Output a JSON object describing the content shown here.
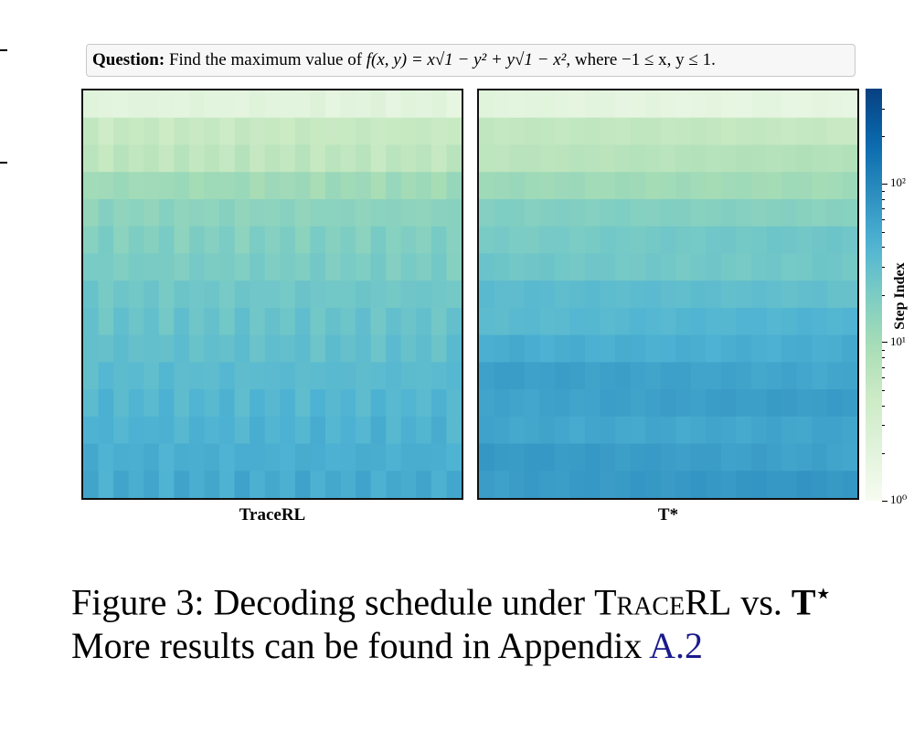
{
  "question": {
    "label": "Question:",
    "text_prefix": "Find the maximum value of",
    "formula": "f(x, y) = x√1 − y² + y√1 − x²",
    "text_suffix": ", where −1 ≤ x, y ≤ 1."
  },
  "chart_data": [
    {
      "type": "heatmap",
      "xlabel": "TraceRL",
      "rows": 15,
      "cols": 25,
      "color_scale": "log",
      "colormap": "GnBu",
      "row_step_values": [
        2,
        5,
        6,
        11,
        15,
        18,
        20,
        24,
        27,
        30,
        34,
        38,
        42,
        46,
        50
      ],
      "colorbar": {
        "label": "Step Index",
        "ticks": [
          "10⁰",
          "10¹",
          "10²"
        ],
        "range": [
          1,
          400
        ]
      }
    },
    {
      "type": "heatmap",
      "xlabel": "T*",
      "rows": 15,
      "cols": 25,
      "color_scale": "log",
      "colormap": "GnBu",
      "row_step_values": [
        2,
        5,
        7,
        12,
        16,
        22,
        26,
        30,
        36,
        52,
        56,
        58,
        60,
        62,
        65
      ],
      "colorbar": {
        "label": "Step Index",
        "ticks": [
          "10⁰",
          "10¹",
          "10²"
        ],
        "range": [
          1,
          400
        ]
      }
    }
  ],
  "caption": {
    "line1_prefix": "Figure 3: Decoding schedule under ",
    "method1": "TraceRL",
    "vs": " vs. ",
    "method2": "T",
    "method2_sup": "⋆",
    "line2_prefix": "More results can be found in Appendix ",
    "link": "A.2"
  }
}
